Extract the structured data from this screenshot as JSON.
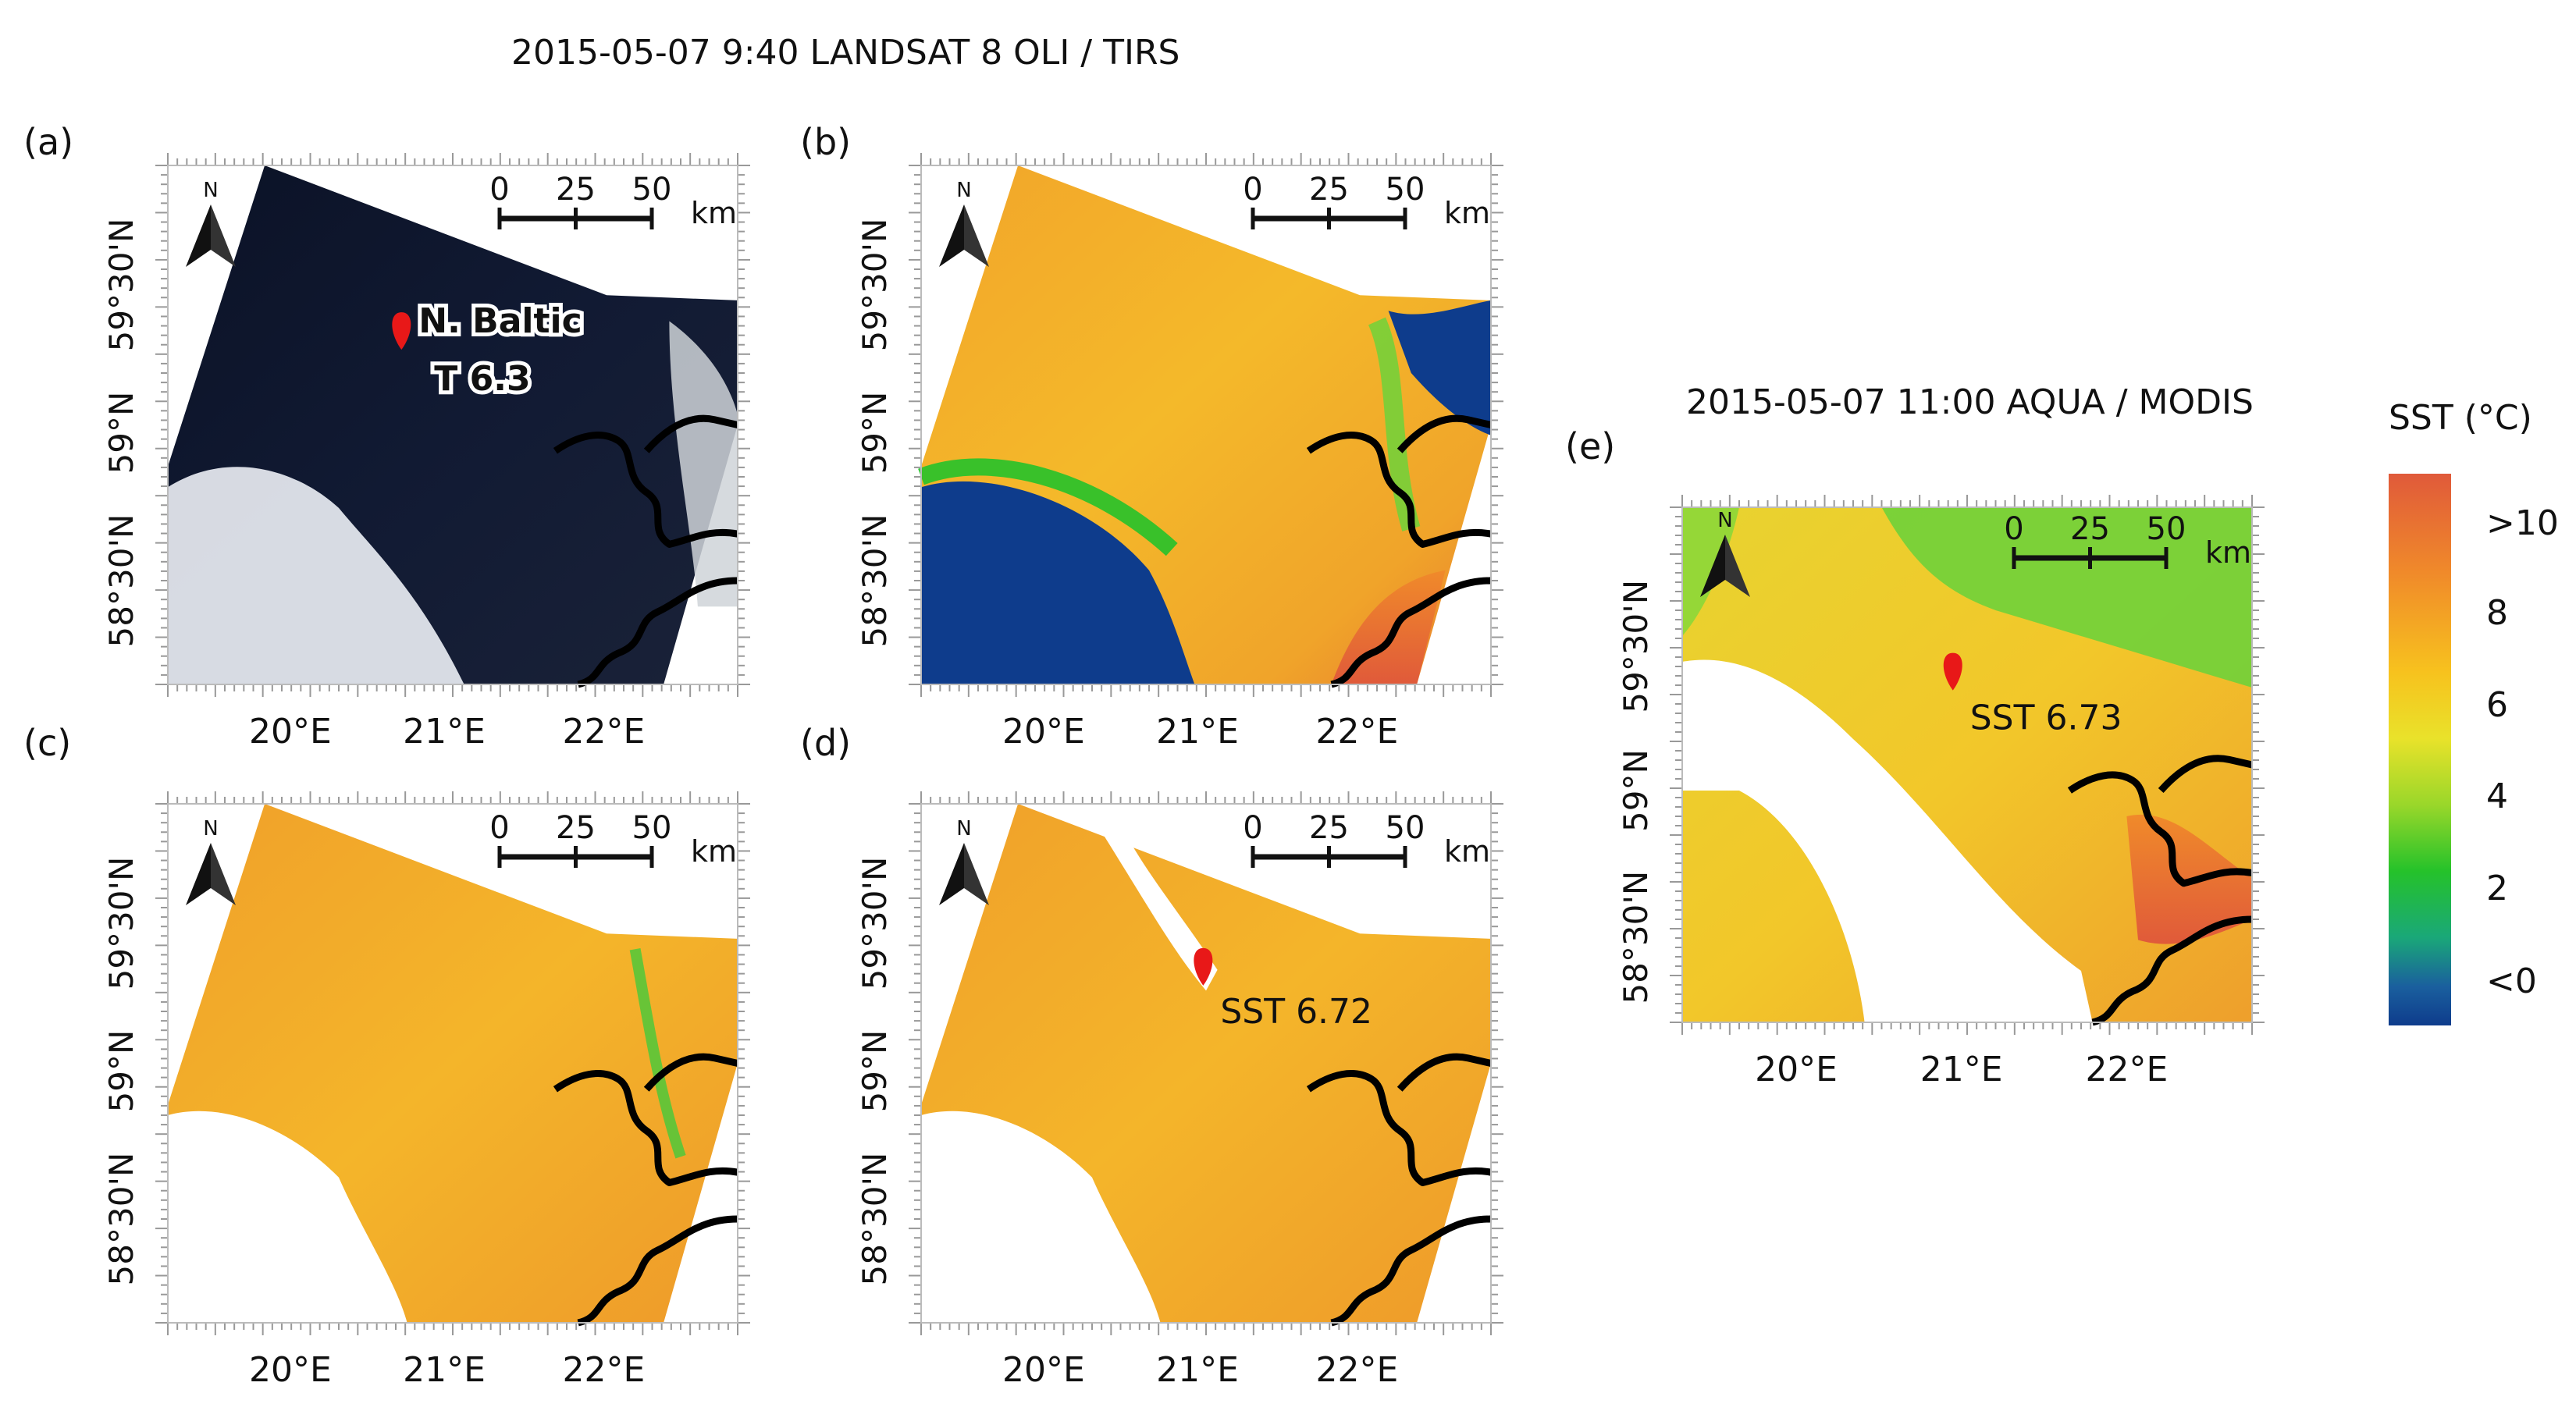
{
  "titles": {
    "landsat": "2015-05-07 9:40 LANDSAT 8 OLI / TIRS",
    "modis": "2015-05-07 11:00 AQUA / MODIS"
  },
  "panels": {
    "a": {
      "letter": "(a)",
      "marker": {
        "line1": "N. Baltic",
        "line2": "T 6.3"
      }
    },
    "b": {
      "letter": "(b)"
    },
    "c": {
      "letter": "(c)"
    },
    "d": {
      "letter": "(d)",
      "marker": {
        "label": "SST 6.72"
      }
    },
    "e": {
      "letter": "(e)",
      "marker": {
        "label": "SST 6.73"
      }
    }
  },
  "axes": {
    "x_ticks": [
      "20°E",
      "21°E",
      "22°E"
    ],
    "y_ticks": [
      "59°30'N",
      "59°N",
      "58°30'N"
    ]
  },
  "north_arrow": {
    "label": "N"
  },
  "scale_bar": {
    "ticks": [
      "0",
      "25",
      "50"
    ],
    "unit": "km"
  },
  "colorbar": {
    "title": "SST (°C)",
    "labels": [
      ">10",
      "8",
      "6",
      "4",
      "2",
      "<0"
    ]
  }
}
